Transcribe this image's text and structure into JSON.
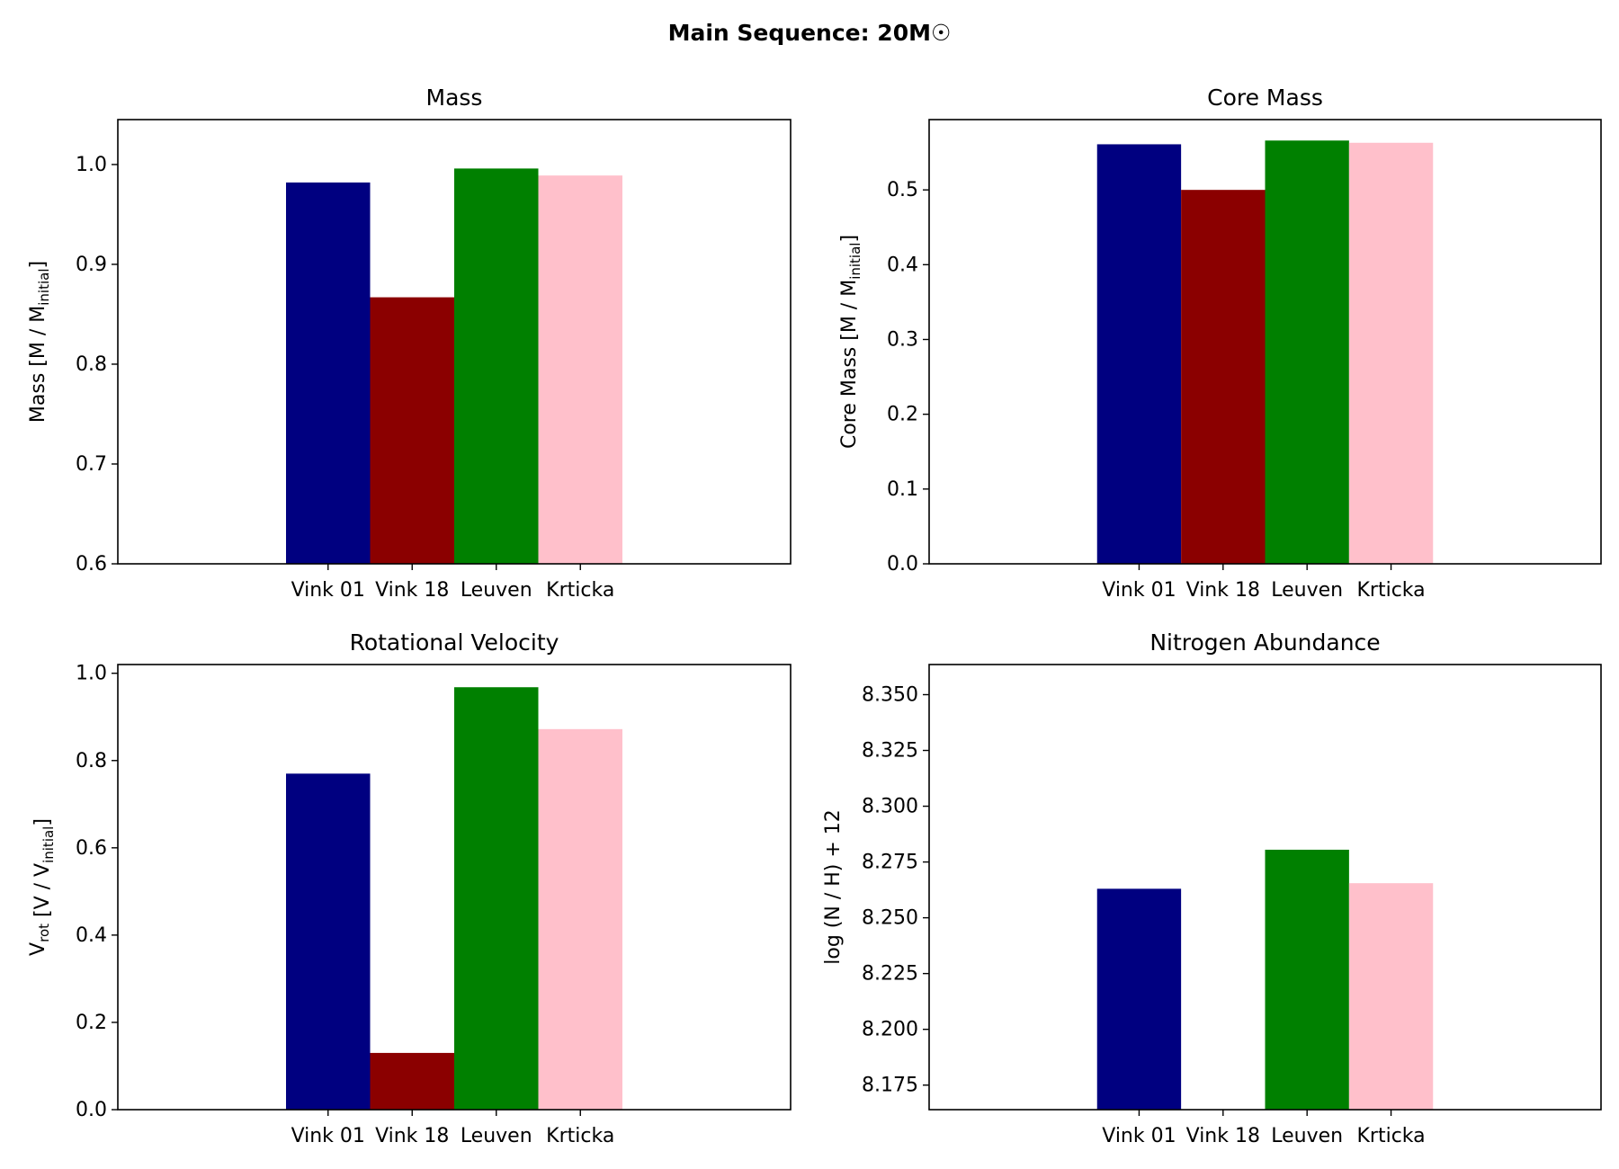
{
  "suptitle": "Main Sequence: 20M☉",
  "colors": [
    "#000080",
    "#8b0000",
    "#008000",
    "#ffc0cb"
  ],
  "chart_data": [
    {
      "type": "bar",
      "title": "Mass",
      "ylabel_main": "Mass [M / M",
      "ylabel_sub": "initial",
      "ylabel_tail": "]",
      "categories": [
        "Vink 01",
        "Vink 18",
        "Leuven",
        "Krticka"
      ],
      "values": [
        0.982,
        0.867,
        0.996,
        0.989
      ],
      "ylim": [
        0.6,
        1.045
      ],
      "yticks": [
        0.6,
        0.7,
        0.8,
        0.9,
        1.0
      ],
      "tick_decimals": 1,
      "grid": false
    },
    {
      "type": "bar",
      "title": "Core Mass",
      "ylabel_main": "Core Mass [M / M",
      "ylabel_sub": "initial",
      "ylabel_tail": "]",
      "categories": [
        "Vink 01",
        "Vink 18",
        "Leuven",
        "Krticka"
      ],
      "values": [
        0.561,
        0.5,
        0.566,
        0.563
      ],
      "ylim": [
        0,
        0.594
      ],
      "yticks": [
        0.0,
        0.1,
        0.2,
        0.3,
        0.4,
        0.5
      ],
      "tick_decimals": 1,
      "grid": false
    },
    {
      "type": "bar",
      "title": "Rotational Velocity",
      "ylabel_pre": "V",
      "ylabel_pre_sub": "rot",
      "ylabel_main": " [V / V",
      "ylabel_sub": "initial",
      "ylabel_tail": "]",
      "categories": [
        "Vink 01",
        "Vink 18",
        "Leuven",
        "Krticka"
      ],
      "values": [
        0.77,
        0.13,
        0.968,
        0.872
      ],
      "ylim": [
        0,
        1.02
      ],
      "yticks": [
        0.0,
        0.2,
        0.4,
        0.6,
        0.8,
        1.0
      ],
      "tick_decimals": 1,
      "grid": false
    },
    {
      "type": "bar",
      "title": "Nitrogen Abundance",
      "ylabel_main": "log (N / H) + 12",
      "ylabel_sub": "",
      "ylabel_tail": "",
      "categories": [
        "Vink 01",
        "Vink 18",
        "Leuven",
        "Krticka"
      ],
      "values": [
        8.263,
        null,
        8.2805,
        8.2655
      ],
      "ylim": [
        8.164,
        8.3635
      ],
      "yticks": [
        8.175,
        8.2,
        8.225,
        8.25,
        8.275,
        8.3,
        8.325,
        8.35
      ],
      "tick_decimals": 3,
      "grid": false
    }
  ]
}
